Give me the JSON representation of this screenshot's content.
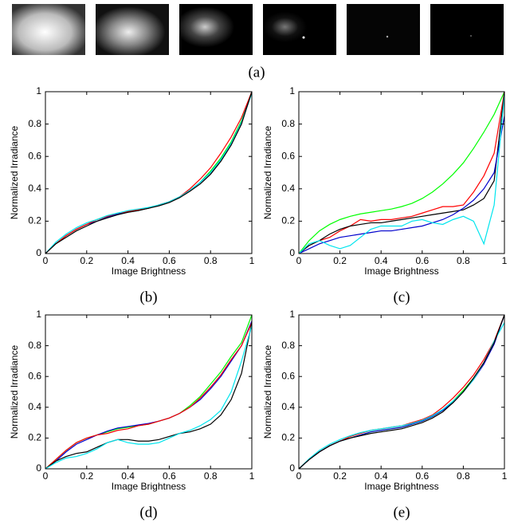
{
  "images": {
    "caption": "(a)"
  },
  "chart_data": [
    {
      "type": "line",
      "caption": "(b)",
      "xlabel": "Image Brightness",
      "ylabel": "Normalized Irradiance",
      "x": [
        0,
        0.05,
        0.1,
        0.15,
        0.2,
        0.25,
        0.3,
        0.35,
        0.4,
        0.45,
        0.5,
        0.55,
        0.6,
        0.65,
        0.7,
        0.75,
        0.8,
        0.85,
        0.9,
        0.95,
        1
      ],
      "xlim": [
        0,
        1
      ],
      "ylim": [
        0,
        1
      ],
      "xticks": [
        0,
        0.2,
        0.4,
        0.6,
        0.8,
        1
      ],
      "yticks": [
        0,
        0.2,
        0.4,
        0.6,
        0.8,
        1
      ],
      "series": [
        {
          "color": "#00ff00",
          "values": [
            0,
            0.06,
            0.11,
            0.15,
            0.18,
            0.21,
            0.23,
            0.25,
            0.26,
            0.27,
            0.28,
            0.3,
            0.32,
            0.35,
            0.39,
            0.44,
            0.51,
            0.59,
            0.69,
            0.82,
            1
          ]
        },
        {
          "color": "#0000cc",
          "values": [
            0,
            0.06,
            0.11,
            0.15,
            0.18,
            0.2,
            0.225,
            0.245,
            0.26,
            0.27,
            0.28,
            0.3,
            0.32,
            0.35,
            0.39,
            0.44,
            0.5,
            0.58,
            0.68,
            0.81,
            1
          ]
        },
        {
          "color": "#ff0000",
          "values": [
            0,
            0.06,
            0.11,
            0.15,
            0.18,
            0.21,
            0.23,
            0.25,
            0.26,
            0.27,
            0.28,
            0.3,
            0.32,
            0.35,
            0.4,
            0.46,
            0.53,
            0.62,
            0.72,
            0.84,
            1
          ]
        },
        {
          "color": "#00e5ee",
          "values": [
            0,
            0.07,
            0.12,
            0.16,
            0.19,
            0.21,
            0.235,
            0.25,
            0.265,
            0.275,
            0.285,
            0.3,
            0.32,
            0.35,
            0.39,
            0.44,
            0.5,
            0.58,
            0.68,
            0.81,
            0.99
          ]
        },
        {
          "color": "#000000",
          "values": [
            0,
            0.06,
            0.1,
            0.14,
            0.17,
            0.2,
            0.22,
            0.24,
            0.255,
            0.265,
            0.28,
            0.295,
            0.315,
            0.345,
            0.385,
            0.43,
            0.49,
            0.57,
            0.67,
            0.8,
            1
          ]
        }
      ]
    },
    {
      "type": "line",
      "caption": "(c)",
      "xlabel": "Image Brightness",
      "ylabel": "Normalized Irradiance",
      "x": [
        0,
        0.05,
        0.1,
        0.15,
        0.2,
        0.25,
        0.3,
        0.35,
        0.4,
        0.45,
        0.5,
        0.55,
        0.6,
        0.65,
        0.7,
        0.75,
        0.8,
        0.85,
        0.9,
        0.95,
        1
      ],
      "xlim": [
        0,
        1
      ],
      "ylim": [
        0,
        1
      ],
      "xticks": [
        0,
        0.2,
        0.4,
        0.6,
        0.8,
        1
      ],
      "yticks": [
        0,
        0.2,
        0.4,
        0.6,
        0.8,
        1
      ],
      "series": [
        {
          "color": "#00ff00",
          "values": [
            0,
            0.08,
            0.14,
            0.18,
            0.21,
            0.23,
            0.245,
            0.255,
            0.265,
            0.275,
            0.29,
            0.31,
            0.34,
            0.38,
            0.43,
            0.49,
            0.56,
            0.65,
            0.75,
            0.86,
            1
          ]
        },
        {
          "color": "#ff0000",
          "values": [
            0,
            0.05,
            0.08,
            0.1,
            0.14,
            0.17,
            0.21,
            0.2,
            0.21,
            0.21,
            0.22,
            0.23,
            0.25,
            0.27,
            0.29,
            0.29,
            0.3,
            0.38,
            0.48,
            0.62,
            1
          ]
        },
        {
          "color": "#000000",
          "values": [
            0,
            0.05,
            0.08,
            0.12,
            0.15,
            0.17,
            0.18,
            0.19,
            0.19,
            0.2,
            0.21,
            0.22,
            0.23,
            0.24,
            0.25,
            0.26,
            0.27,
            0.3,
            0.34,
            0.45,
            1
          ]
        },
        {
          "color": "#0000cc",
          "values": [
            0,
            0.03,
            0.06,
            0.08,
            0.1,
            0.11,
            0.12,
            0.13,
            0.14,
            0.14,
            0.15,
            0.16,
            0.17,
            0.19,
            0.21,
            0.24,
            0.28,
            0.33,
            0.4,
            0.5,
            0.85
          ]
        },
        {
          "color": "#00e5ee",
          "values": [
            0,
            0.06,
            0.08,
            0.05,
            0.03,
            0.05,
            0.1,
            0.15,
            0.17,
            0.17,
            0.17,
            0.2,
            0.21,
            0.19,
            0.18,
            0.21,
            0.23,
            0.2,
            0.06,
            0.3,
            0.98
          ]
        }
      ]
    },
    {
      "type": "line",
      "caption": "(d)",
      "xlabel": "Image Brightness",
      "ylabel": "Normalized Irradiance",
      "x": [
        0,
        0.05,
        0.1,
        0.15,
        0.2,
        0.25,
        0.3,
        0.35,
        0.4,
        0.45,
        0.5,
        0.55,
        0.6,
        0.65,
        0.7,
        0.75,
        0.8,
        0.85,
        0.9,
        0.95,
        1
      ],
      "xlim": [
        0,
        1
      ],
      "ylim": [
        0,
        1
      ],
      "xticks": [
        0,
        0.2,
        0.4,
        0.6,
        0.8,
        1
      ],
      "yticks": [
        0,
        0.2,
        0.4,
        0.6,
        0.8,
        1
      ],
      "series": [
        {
          "color": "#00ff00",
          "values": [
            0,
            0.06,
            0.12,
            0.17,
            0.2,
            0.22,
            0.24,
            0.26,
            0.27,
            0.28,
            0.29,
            0.31,
            0.33,
            0.36,
            0.41,
            0.47,
            0.55,
            0.63,
            0.73,
            0.82,
            1
          ]
        },
        {
          "color": "#0000cc",
          "values": [
            0,
            0.05,
            0.11,
            0.16,
            0.19,
            0.22,
            0.245,
            0.265,
            0.275,
            0.285,
            0.295,
            0.31,
            0.33,
            0.36,
            0.4,
            0.45,
            0.52,
            0.6,
            0.7,
            0.8,
            0.96
          ]
        },
        {
          "color": "#ff0000",
          "values": [
            0,
            0.06,
            0.12,
            0.17,
            0.2,
            0.22,
            0.23,
            0.25,
            0.26,
            0.28,
            0.29,
            0.31,
            0.33,
            0.36,
            0.4,
            0.46,
            0.53,
            0.61,
            0.71,
            0.8,
            0.95
          ]
        },
        {
          "color": "#000000",
          "values": [
            0,
            0.05,
            0.08,
            0.1,
            0.11,
            0.14,
            0.17,
            0.19,
            0.19,
            0.18,
            0.18,
            0.19,
            0.21,
            0.23,
            0.24,
            0.26,
            0.29,
            0.35,
            0.45,
            0.62,
            0.95
          ]
        },
        {
          "color": "#00e5ee",
          "values": [
            0,
            0.04,
            0.07,
            0.08,
            0.1,
            0.13,
            0.17,
            0.19,
            0.17,
            0.16,
            0.16,
            0.17,
            0.2,
            0.23,
            0.25,
            0.28,
            0.32,
            0.38,
            0.5,
            0.7,
            0.93
          ]
        }
      ]
    },
    {
      "type": "line",
      "caption": "(e)",
      "xlabel": "Image Brightness",
      "ylabel": "Normalized Irradiance",
      "x": [
        0,
        0.05,
        0.1,
        0.15,
        0.2,
        0.25,
        0.3,
        0.35,
        0.4,
        0.45,
        0.5,
        0.55,
        0.6,
        0.65,
        0.7,
        0.75,
        0.8,
        0.85,
        0.9,
        0.95,
        1
      ],
      "xlim": [
        0,
        1
      ],
      "ylim": [
        0,
        1
      ],
      "xticks": [
        0,
        0.2,
        0.4,
        0.6,
        0.8,
        1
      ],
      "yticks": [
        0,
        0.2,
        0.4,
        0.6,
        0.8,
        1
      ],
      "series": [
        {
          "color": "#00ff00",
          "values": [
            0,
            0.06,
            0.11,
            0.15,
            0.18,
            0.2,
            0.22,
            0.24,
            0.25,
            0.26,
            0.27,
            0.29,
            0.31,
            0.34,
            0.38,
            0.44,
            0.51,
            0.59,
            0.69,
            0.82,
            1
          ]
        },
        {
          "color": "#ff0000",
          "values": [
            0,
            0.06,
            0.11,
            0.15,
            0.18,
            0.21,
            0.23,
            0.25,
            0.26,
            0.27,
            0.28,
            0.3,
            0.32,
            0.35,
            0.4,
            0.46,
            0.53,
            0.61,
            0.71,
            0.83,
            1
          ]
        },
        {
          "color": "#0000cc",
          "values": [
            0,
            0.06,
            0.11,
            0.15,
            0.18,
            0.2,
            0.22,
            0.24,
            0.25,
            0.26,
            0.27,
            0.29,
            0.31,
            0.34,
            0.38,
            0.43,
            0.5,
            0.58,
            0.68,
            0.81,
            1
          ]
        },
        {
          "color": "#00e5ee",
          "values": [
            0,
            0.065,
            0.12,
            0.16,
            0.19,
            0.215,
            0.235,
            0.25,
            0.26,
            0.27,
            0.28,
            0.295,
            0.315,
            0.345,
            0.385,
            0.44,
            0.5,
            0.58,
            0.69,
            0.83,
            0.95
          ]
        },
        {
          "color": "#000000",
          "values": [
            0,
            0.06,
            0.11,
            0.15,
            0.18,
            0.2,
            0.215,
            0.23,
            0.24,
            0.25,
            0.26,
            0.28,
            0.3,
            0.33,
            0.37,
            0.43,
            0.5,
            0.59,
            0.69,
            0.82,
            1
          ]
        }
      ]
    }
  ]
}
